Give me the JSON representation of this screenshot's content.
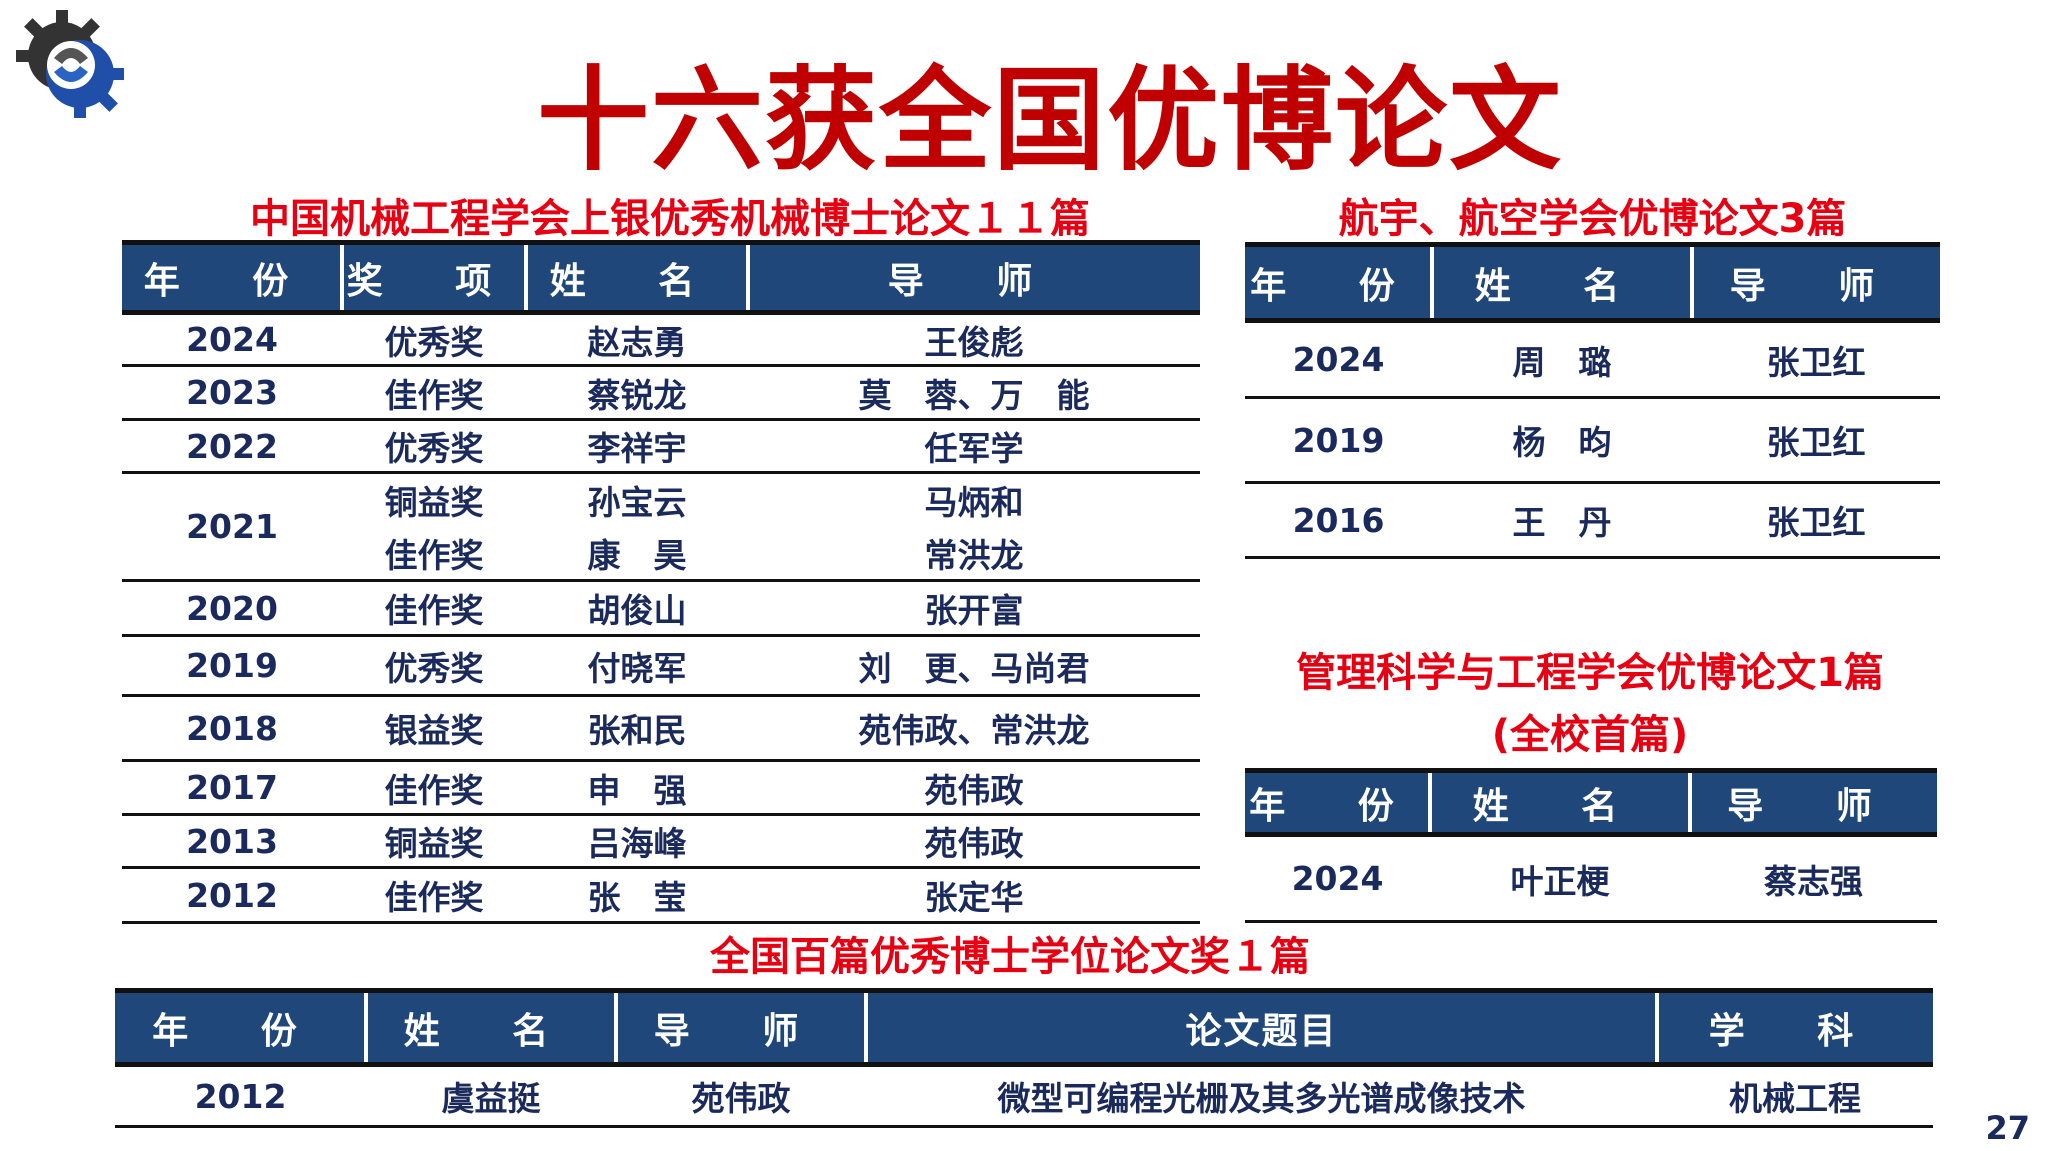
{
  "title": "十六获全国优博论文",
  "logo": "gear-logo-icon",
  "colors": {
    "title": "#c00000",
    "subtitle": "#e60012",
    "header_bg": "#1f477a",
    "text": "#1b2a5c"
  },
  "cmes": {
    "subtitle": "中国机械工程学会上银优秀机械博士论文１１篇",
    "headers": [
      "年 份",
      "奖 项",
      "姓 名",
      "导 师"
    ],
    "rows": [
      {
        "year": "2024",
        "award": "优秀奖",
        "name": "赵志勇",
        "advisor": "王俊彪"
      },
      {
        "year": "2023",
        "award": "佳作奖",
        "name": "蔡锐龙",
        "advisor": "莫　蓉、万　能"
      },
      {
        "year": "2022",
        "award": "优秀奖",
        "name": "李祥宇",
        "advisor": "任军学"
      },
      {
        "year": "2021",
        "award": "铜益奖",
        "name": "孙宝云",
        "advisor": "马炳和"
      },
      {
        "year": "",
        "award": "佳作奖",
        "name": "康　昊",
        "advisor": "常洪龙"
      },
      {
        "year": "2020",
        "award": "佳作奖",
        "name": "胡俊山",
        "advisor": "张开富"
      },
      {
        "year": "2019",
        "award": "优秀奖",
        "name": "付晓军",
        "advisor": "刘　更、马尚君"
      },
      {
        "year": "2018",
        "award": "银益奖",
        "name": "张和民",
        "advisor": "苑伟政、常洪龙"
      },
      {
        "year": "2017",
        "award": "佳作奖",
        "name": "申　强",
        "advisor": "苑伟政"
      },
      {
        "year": "2013",
        "award": "铜益奖",
        "name": "吕海峰",
        "advisor": "苑伟政"
      },
      {
        "year": "2012",
        "award": "佳作奖",
        "name": "张　莹",
        "advisor": "张定华"
      }
    ]
  },
  "aero": {
    "subtitle": "航宇、航空学会优博论文3篇",
    "headers": [
      "年 份",
      "姓 名",
      "导 师"
    ],
    "rows": [
      {
        "year": "2024",
        "name": "周　璐",
        "advisor": "张卫红"
      },
      {
        "year": "2019",
        "name": "杨　昀",
        "advisor": "张卫红"
      },
      {
        "year": "2016",
        "name": "王　丹",
        "advisor": "张卫红"
      }
    ]
  },
  "mgmt": {
    "subtitle": "管理科学与工程学会优博论文1篇",
    "subtitle2": "(全校首篇)",
    "headers": [
      "年 份",
      "姓 名",
      "导 师"
    ],
    "rows": [
      {
        "year": "2024",
        "name": "叶正梗",
        "advisor": "蔡志强"
      }
    ]
  },
  "national": {
    "subtitle": "全国百篇优秀博士学位论文奖１篇",
    "headers": [
      "年 份",
      "姓 名",
      "导 师",
      "论文题目",
      "学 科"
    ],
    "rows": [
      {
        "year": "2012",
        "name": "虞益挺",
        "advisor": "苑伟政",
        "thesis": "微型可编程光栅及其多光谱成像技术",
        "discipline": "机械工程"
      }
    ]
  },
  "page_number": "27"
}
